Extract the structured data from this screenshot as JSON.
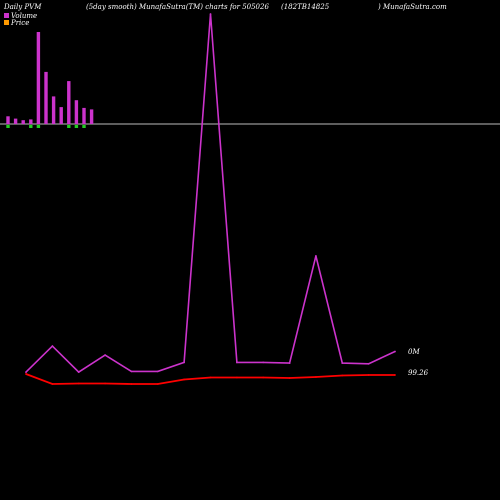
{
  "header": {
    "title": "Daily PVM",
    "subtitle": "(5day smooth) MunafaSutra(TM) charts for 505026",
    "code": "(182TB14825",
    "site": ") MunafaSutra.com"
  },
  "legend": {
    "volume_label": "Volume",
    "price_label": "Price",
    "volume_color": "#cc33cc",
    "price_color": "#ff9900"
  },
  "colors": {
    "background": "#000000",
    "volume_up": "#cc33cc",
    "volume_down": "#22cc22",
    "pvm_line": "#cc33cc",
    "price_line": "#ff0000",
    "baseline": "#bbbbbb"
  },
  "chart_data": [
    {
      "type": "bar",
      "name": "Volume",
      "values": [
        1,
        0.7,
        0.5,
        0.6,
        12,
        6.8,
        3.6,
        2.2,
        5.6,
        3.1,
        2.1,
        1.9
      ],
      "down_flags": [
        true,
        false,
        false,
        true,
        true,
        false,
        false,
        false,
        true,
        true,
        true,
        false
      ]
    },
    {
      "type": "line",
      "name": "PVM",
      "values": [
        0.8,
        8.0,
        0.8,
        5.5,
        1.0,
        1.0,
        3.5,
        100,
        3.5,
        3.5,
        3.3,
        33,
        3.3,
        3.1,
        6.5
      ],
      "last_label": "0M"
    },
    {
      "type": "line",
      "name": "Price",
      "values": [
        99.4,
        97.4,
        97.5,
        97.5,
        97.4,
        97.4,
        98.3,
        98.7,
        98.7,
        98.7,
        98.6,
        98.8,
        99.1,
        99.2,
        99.2
      ],
      "last_label": "99.26"
    }
  ]
}
